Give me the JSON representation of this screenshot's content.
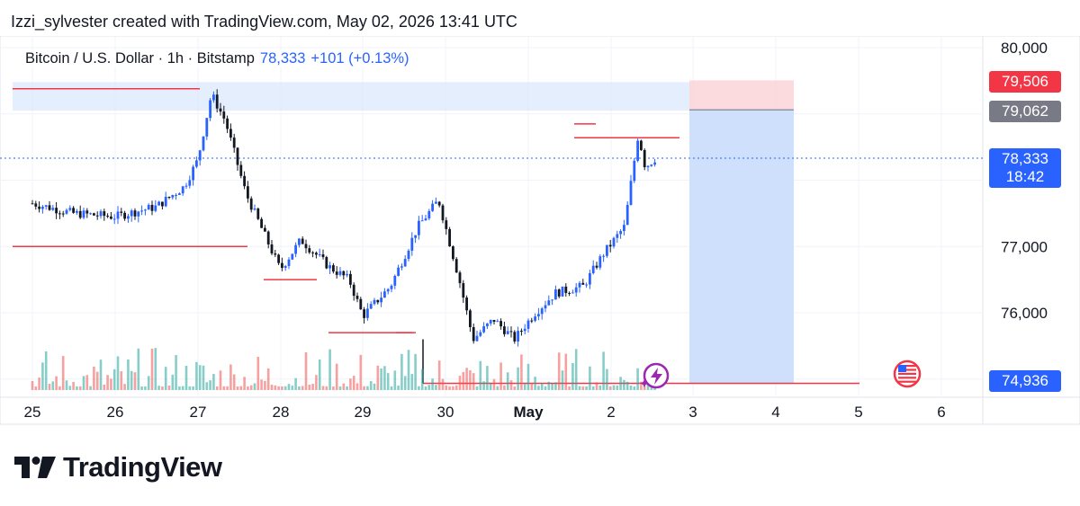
{
  "creator_line": "Izzi_sylvester created with TradingView.com, May 02, 2026 13:41 UTC",
  "legend": {
    "symbol": "Bitcoin / U.S. Dollar · 1h · Bitstamp",
    "price": "78,333",
    "change": "+101 (+0.13%)"
  },
  "price_tags": {
    "target": "79,506",
    "entry": "79,062",
    "current_price": "78,333",
    "countdown": "18:42",
    "bottom": "74,936"
  },
  "brand": "TradingView",
  "colors": {
    "up": "#2962ff",
    "down": "#131722",
    "level_line": "#f23645",
    "vol_up": "#26a69a",
    "vol_down": "#ef5350",
    "box_blue": "#c7dafb",
    "box_red": "#fbd5d8"
  },
  "icons": [
    "lightning-event-icon",
    "us-flag-icon",
    "tradingview-logo-icon"
  ],
  "chart_data": {
    "type": "candlestick",
    "title": "",
    "y_axis": {
      "ticks": [
        80000,
        77000,
        76000
      ],
      "ylim": [
        74800,
        80200
      ]
    },
    "x_axis": {
      "tick_labels": [
        "25",
        "26",
        "27",
        "28",
        "29",
        "30",
        "May",
        "2",
        "3",
        "4",
        "5",
        "6"
      ]
    },
    "grid": true,
    "current_price": 78333,
    "horizontal_levels": [
      79380,
      78640,
      78850,
      77000,
      76500,
      75700,
      75700,
      74936
    ],
    "zones": [
      {
        "kind": "supply",
        "from": 79050,
        "to": 79480
      },
      {
        "kind": "long_position",
        "entry": 79062,
        "target": 79506,
        "stop": 74936
      }
    ],
    "price_path": [
      {
        "t": "Apr 25 00:00",
        "close": 77650
      },
      {
        "t": "Apr 25 12:00",
        "close": 77500
      },
      {
        "t": "Apr 26 00:00",
        "close": 77450
      },
      {
        "t": "Apr 26 12:00",
        "close": 77600
      },
      {
        "t": "Apr 26 20:00",
        "close": 77900
      },
      {
        "t": "Apr 27 00:00",
        "close": 78300
      },
      {
        "t": "Apr 27 04:00",
        "close": 79300
      },
      {
        "t": "Apr 27 08:00",
        "close": 78900
      },
      {
        "t": "Apr 27 14:00",
        "close": 77800
      },
      {
        "t": "Apr 28 00:00",
        "close": 76650
      },
      {
        "t": "Apr 28 06:00",
        "close": 77100
      },
      {
        "t": "Apr 28 14:00",
        "close": 76700
      },
      {
        "t": "Apr 28 20:00",
        "close": 76500
      },
      {
        "t": "Apr 29 00:00",
        "close": 75950
      },
      {
        "t": "Apr 29 08:00",
        "close": 76400
      },
      {
        "t": "Apr 29 16:00",
        "close": 77300
      },
      {
        "t": "Apr 29 22:00",
        "close": 77700
      },
      {
        "t": "Apr 30 04:00",
        "close": 76500
      },
      {
        "t": "Apr 30 08:00",
        "close": 75600
      },
      {
        "t": "Apr 30 14:00",
        "close": 75900
      },
      {
        "t": "Apr 30 20:00",
        "close": 75600
      },
      {
        "t": "May 01 02:00",
        "close": 76000
      },
      {
        "t": "May 01 08:00",
        "close": 76300
      },
      {
        "t": "May 01 16:00",
        "close": 76400
      },
      {
        "t": "May 01 22:00",
        "close": 76900
      },
      {
        "t": "May 02 04:00",
        "close": 77300
      },
      {
        "t": "May 02 08:00",
        "close": 78700
      },
      {
        "t": "May 02 10:00",
        "close": 78200
      },
      {
        "t": "May 02 13:00",
        "close": 78333
      }
    ]
  }
}
